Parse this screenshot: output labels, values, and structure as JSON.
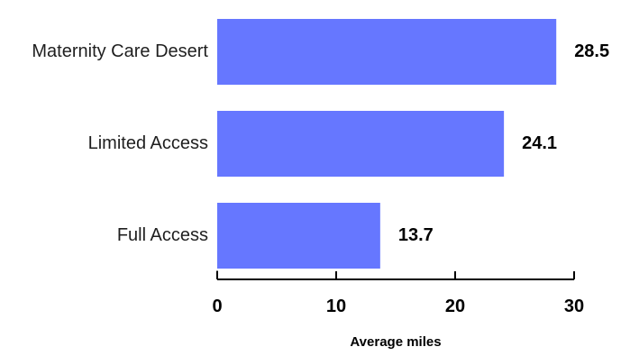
{
  "chart_data": {
    "type": "bar",
    "orientation": "horizontal",
    "categories": [
      "Maternity Care Desert",
      "Limited Access",
      "Full Access"
    ],
    "values": [
      28.5,
      24.1,
      13.7
    ],
    "value_labels": [
      "28.5",
      "24.1",
      "13.7"
    ],
    "xlabel": "Average miles",
    "xlim": [
      0,
      30
    ],
    "xticks": [
      "0",
      "10",
      "20",
      "30"
    ],
    "grid": false,
    "legend": "none",
    "bar_color": "#6677ff"
  }
}
